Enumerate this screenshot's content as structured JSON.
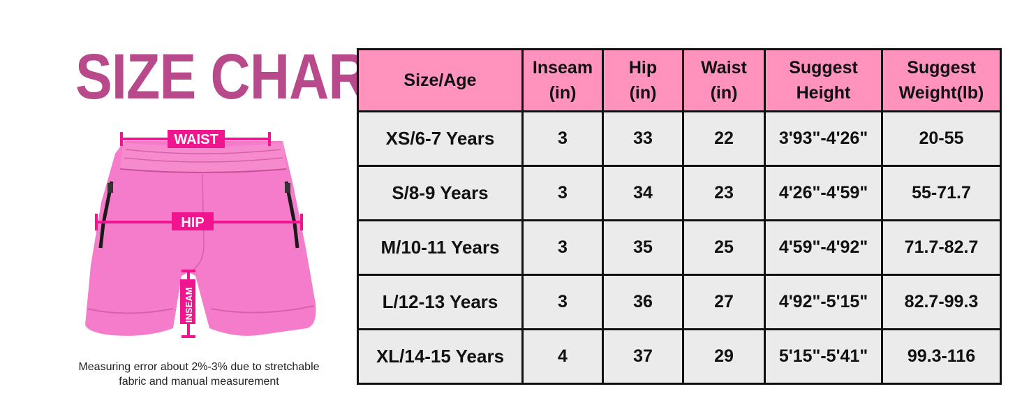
{
  "title": "SIZE CHART",
  "diagram": {
    "labels": {
      "waist": "WAIST",
      "hip": "HIP",
      "inseam": "INSEAM"
    },
    "colors": {
      "garment": "#f57ccb",
      "garment_shadow": "#d95fae",
      "measure": "#f0148f",
      "zipper": "#1a1a1a"
    }
  },
  "note_line1": "Measuring error about 2%-3% due to stretchable",
  "note_line2": "fabric and manual measurement",
  "table": {
    "headers": [
      {
        "line1": "Size/Age",
        "line2": ""
      },
      {
        "line1": "Inseam",
        "line2": "(in)"
      },
      {
        "line1": "Hip",
        "line2": "(in)"
      },
      {
        "line1": "Waist",
        "line2": "(in)"
      },
      {
        "line1": "Suggest",
        "line2": "Height"
      },
      {
        "line1": "Suggest",
        "line2": "Weight(lb)"
      }
    ],
    "rows": [
      [
        "XS/6-7 Years",
        "3",
        "33",
        "22",
        "3'93\"-4'26\"",
        "20-55"
      ],
      [
        "S/8-9 Years",
        "3",
        "34",
        "23",
        "4'26\"-4'59\"",
        "55-71.7"
      ],
      [
        "M/10-11 Years",
        "3",
        "35",
        "25",
        "4'59\"-4'92\"",
        "71.7-82.7"
      ],
      [
        "L/12-13 Years",
        "3",
        "36",
        "27",
        "4'92\"-5'15\"",
        "82.7-99.3"
      ],
      [
        "XL/14-15 Years",
        "4",
        "37",
        "29",
        "5'15\"-5'41\"",
        "99.3-116"
      ]
    ]
  },
  "colors": {
    "header_bg": "#ff93be",
    "cell_bg": "#ebebeb",
    "title": "#b84a8b",
    "border": "#111111"
  }
}
